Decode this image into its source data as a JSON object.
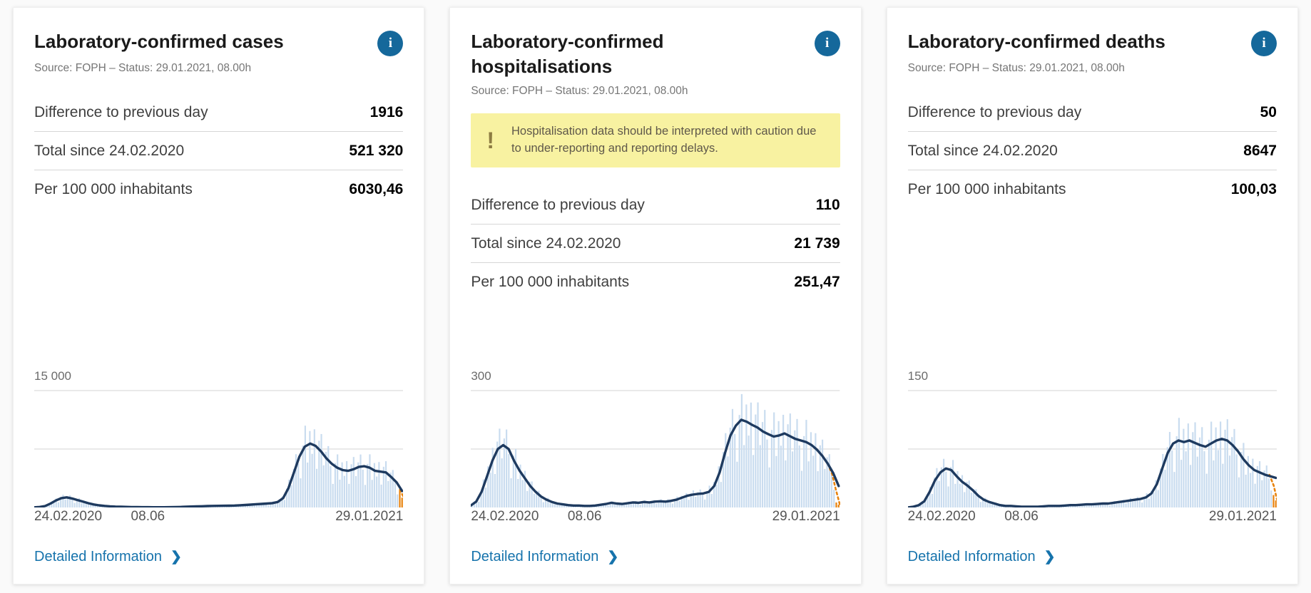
{
  "icons": {
    "info": "i",
    "warning": "!",
    "chevron": "❯"
  },
  "colors": {
    "bar": "#c9dcef",
    "line": "#1e3a5f",
    "tail": "#e8820c",
    "grid": "#dcdcdc",
    "accent_blue": "#15689b",
    "warning_bg": "#f8f2a1"
  },
  "cards": [
    {
      "title": "Laboratory-confirmed cases",
      "source": "Source: FOPH – Status: 29.01.2021, 08.00h",
      "stats": [
        {
          "label": "Difference to previous day",
          "value": "1916"
        },
        {
          "label": "Total since 24.02.2020",
          "value": "521 320"
        },
        {
          "label": "Per 100 000 inhabitants",
          "value": "6030,46"
        }
      ],
      "link": "Detailed Information"
    },
    {
      "title": "Laboratory-confirmed hospitalisations",
      "source": "Source: FOPH – Status: 29.01.2021, 08.00h",
      "warning": "Hospitalisation data should be interpreted with caution due to under-reporting and reporting delays.",
      "stats": [
        {
          "label": "Difference to previous day",
          "value": "110"
        },
        {
          "label": "Total since 24.02.2020",
          "value": "21 739"
        },
        {
          "label": "Per 100 000 inhabitants",
          "value": "251,47"
        }
      ],
      "link": "Detailed Information"
    },
    {
      "title": "Laboratory-confirmed deaths",
      "source": "Source: FOPH – Status: 29.01.2021, 08.00h",
      "stats": [
        {
          "label": "Difference to previous day",
          "value": "50"
        },
        {
          "label": "Total since 24.02.2020",
          "value": "8647"
        },
        {
          "label": "Per 100 000 inhabitants",
          "value": "100,03"
        }
      ],
      "link": "Detailed Information"
    }
  ],
  "chart_data": [
    {
      "type": "bar",
      "title": "Laboratory-confirmed cases per day with 7-day average line",
      "ymax": 15000,
      "ymax_label": "15 000",
      "xticks": [
        "24.02.2020",
        "08.06",
        "29.01.2021"
      ],
      "x_range_days": 341,
      "xtick_positions_pct": [
        0,
        30.8,
        100
      ],
      "line_day_step": 5,
      "line_values": [
        20,
        60,
        180,
        500,
        900,
        1200,
        1300,
        1150,
        950,
        750,
        550,
        380,
        270,
        200,
        150,
        110,
        90,
        70,
        55,
        45,
        40,
        35,
        30,
        28,
        30,
        35,
        45,
        60,
        90,
        120,
        140,
        160,
        180,
        200,
        210,
        220,
        230,
        250,
        280,
        320,
        370,
        420,
        460,
        500,
        560,
        700,
        1200,
        2500,
        4500,
        6500,
        7800,
        8200,
        7900,
        7200,
        6300,
        5600,
        5100,
        4800,
        4700,
        4900,
        5200,
        5300,
        5100,
        4700,
        4600,
        4500,
        3900,
        3200,
        2100
      ],
      "tail": [
        [
          338,
          2300
        ],
        [
          341,
          1400
        ]
      ],
      "bar_noise": [
        1.12,
        1.3,
        0.92,
        0.55,
        1.08,
        1.34,
        0.72,
        1.2,
        0.85,
        1.26,
        0.64,
        1.15,
        1.32,
        0.8
      ],
      "grid": "top-and-middle",
      "legend": "none"
    },
    {
      "type": "bar",
      "title": "Laboratory-confirmed hospitalisations per day with 7-day average line",
      "ymax": 300,
      "ymax_label": "300",
      "xticks": [
        "24.02.2020",
        "08.06",
        "29.01.2021"
      ],
      "x_range_days": 341,
      "xtick_positions_pct": [
        0,
        30.8,
        100
      ],
      "line_day_step": 5,
      "line_values": [
        5,
        15,
        40,
        80,
        120,
        150,
        160,
        150,
        120,
        95,
        75,
        55,
        40,
        28,
        20,
        14,
        10,
        8,
        6,
        5,
        5,
        4,
        4,
        5,
        7,
        9,
        12,
        10,
        9,
        11,
        13,
        12,
        14,
        13,
        15,
        16,
        15,
        17,
        20,
        25,
        30,
        33,
        35,
        36,
        40,
        55,
        90,
        140,
        185,
        210,
        225,
        220,
        212,
        205,
        195,
        188,
        182,
        185,
        190,
        183,
        176,
        172,
        168,
        160,
        148,
        132,
        112,
        88,
        55
      ],
      "tail": [
        [
          330,
          112
        ],
        [
          334,
          85
        ],
        [
          337,
          50
        ],
        [
          341,
          8
        ]
      ],
      "bar_noise": [
        1.12,
        1.3,
        0.92,
        0.55,
        1.08,
        1.34,
        0.72,
        1.2,
        0.85,
        1.26,
        0.64,
        1.15,
        1.32,
        0.8
      ],
      "grid": "top-and-middle",
      "legend": "none"
    },
    {
      "type": "bar",
      "title": "Laboratory-confirmed deaths per day with 7-day average line",
      "ymax": 150,
      "ymax_label": "150",
      "xticks": [
        "24.02.2020",
        "08.06",
        "29.01.2021"
      ],
      "x_range_days": 341,
      "xtick_positions_pct": [
        0,
        30.8,
        100
      ],
      "line_day_step": 5,
      "line_values": [
        0,
        1,
        3,
        8,
        20,
        35,
        45,
        50,
        48,
        40,
        33,
        28,
        22,
        15,
        10,
        7,
        5,
        3,
        2,
        2,
        1.5,
        1,
        1,
        1,
        1,
        1.5,
        2,
        2,
        2,
        2.5,
        3,
        3,
        3.5,
        4,
        4,
        4.5,
        5,
        5,
        6,
        7,
        8,
        9,
        10,
        11,
        13,
        18,
        30,
        50,
        70,
        82,
        86,
        84,
        86,
        83,
        80,
        78,
        82,
        86,
        88,
        86,
        80,
        72,
        62,
        54,
        48,
        45,
        42,
        40,
        38
      ],
      "tail": [
        [
          334,
          42
        ],
        [
          338,
          28
        ],
        [
          341,
          10
        ]
      ],
      "bar_noise": [
        1.12,
        1.3,
        0.92,
        0.55,
        1.08,
        1.34,
        0.72,
        1.2,
        0.85,
        1.26,
        0.64,
        1.15,
        1.32,
        0.8
      ],
      "grid": "top-and-middle",
      "legend": "none"
    }
  ]
}
